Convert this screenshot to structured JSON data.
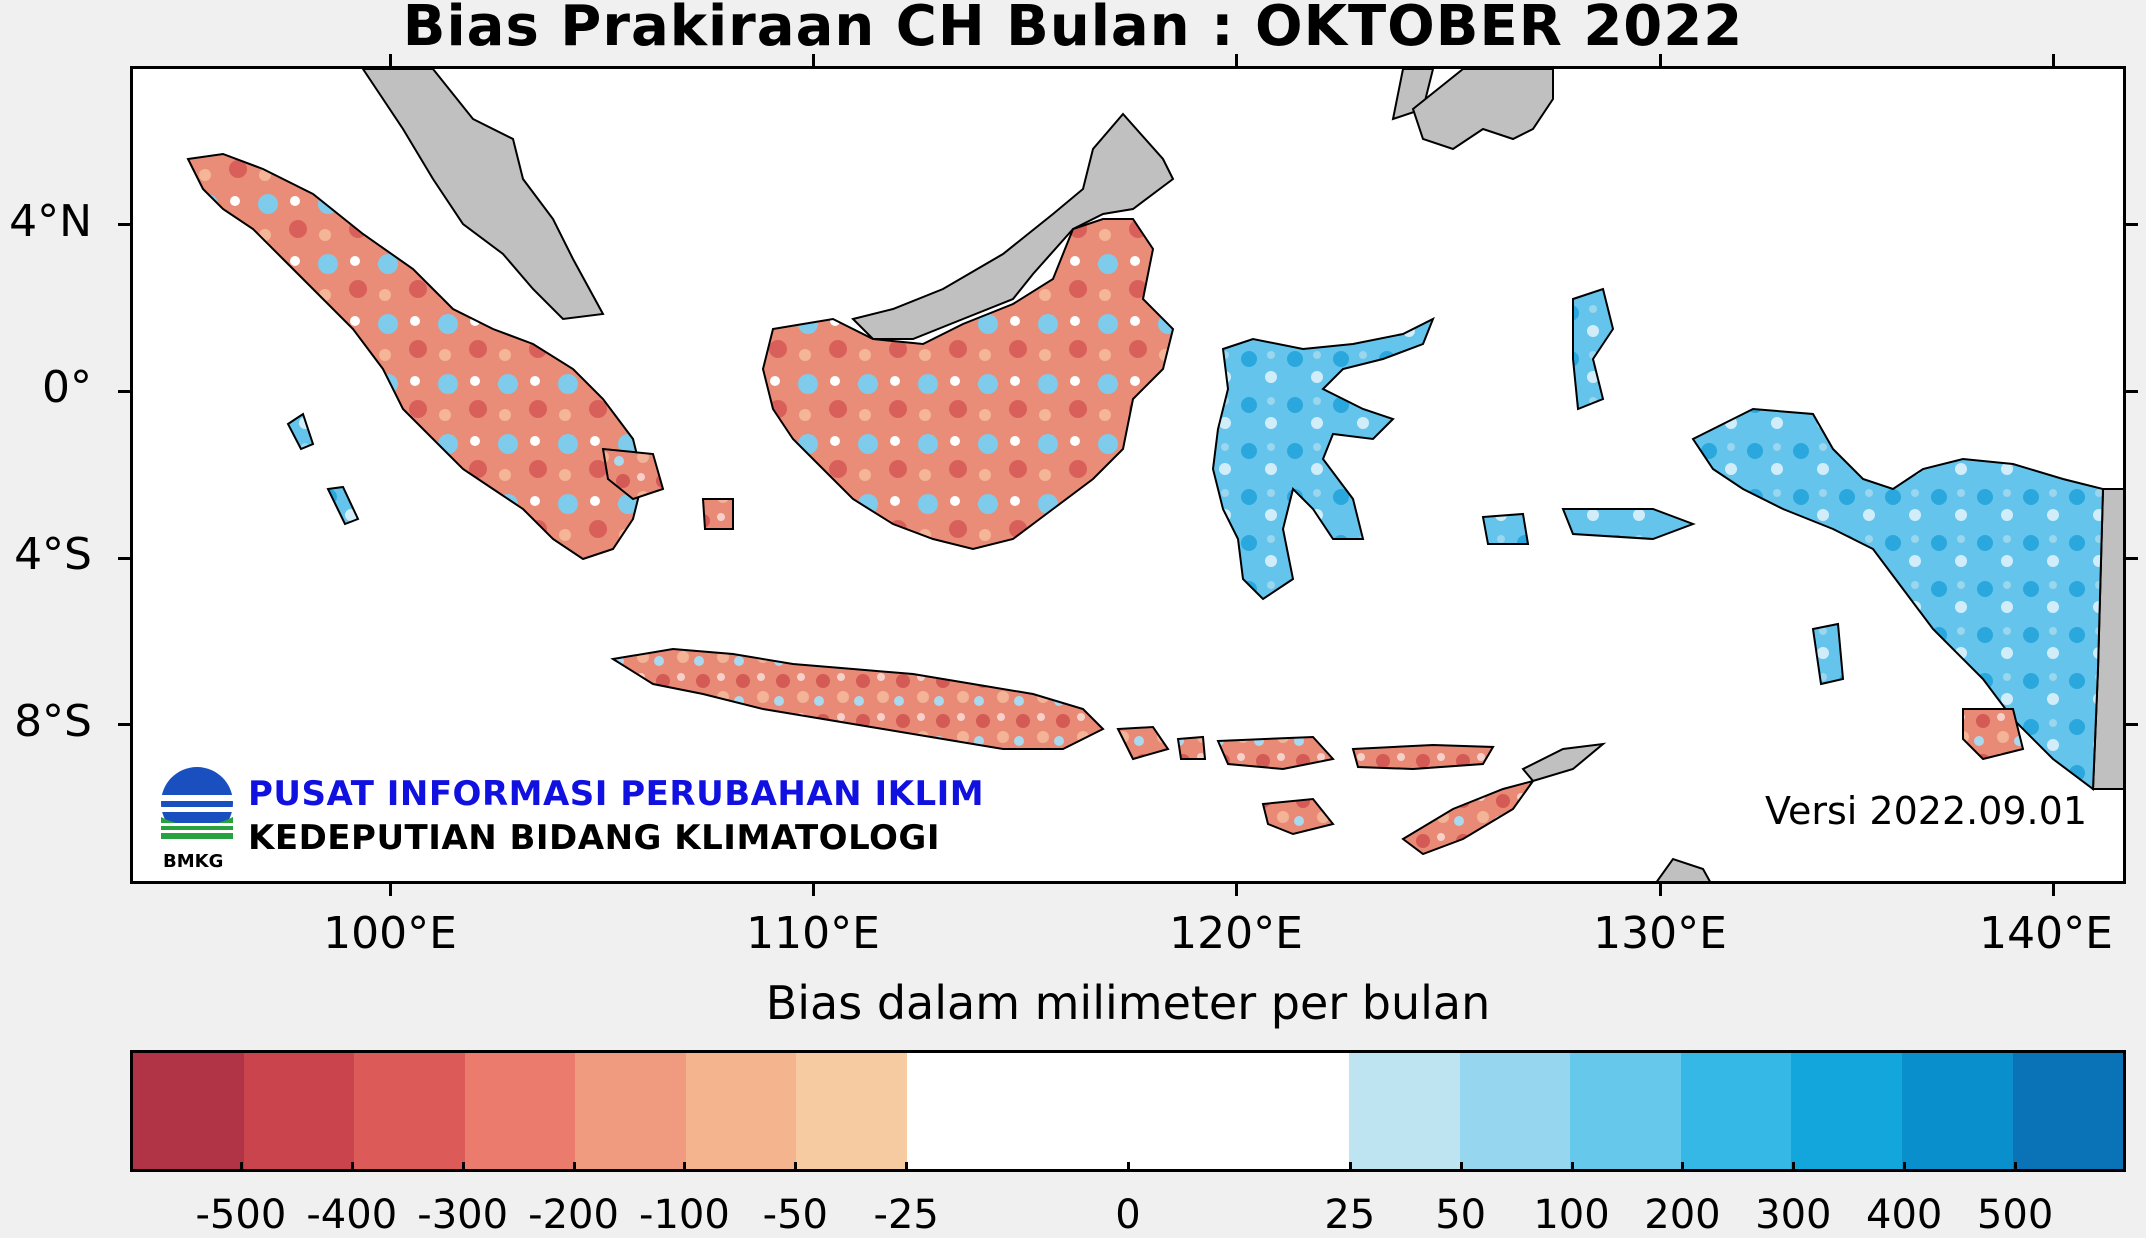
{
  "title": "Bias Prakiraan CH Bulan : OKTOBER 2022",
  "lat_labels": [
    "4°N",
    "0°",
    "4°S",
    "8°S"
  ],
  "lon_labels": [
    "100°E",
    "110°E",
    "120°E",
    "130°E",
    "140°E"
  ],
  "organization": {
    "logo_text": "BMKG",
    "name": "PUSAT INFORMASI PERUBAHAN IKLIM",
    "department": "KEDEPUTIAN BIDANG KLIMATOLOGI"
  },
  "version": "Versi 2022.09.01",
  "colorbar": {
    "label": "Bias dalam milimeter per bulan",
    "ticks": [
      "-500",
      "-400",
      "-300",
      "-200",
      "-100",
      "-50",
      "-25",
      "0",
      "25",
      "50",
      "100",
      "200",
      "300",
      "400",
      "500"
    ],
    "colors": [
      "#b03446",
      "#c9444d",
      "#dc5a57",
      "#ea7b6d",
      "#f09b80",
      "#f4b48e",
      "#f6cba1",
      "#ffffff",
      "#ffffff",
      "#ffffff",
      "#ffffff",
      "#bde4f0",
      "#97d6ef",
      "#66c8eb",
      "#36b8e6",
      "#12a6dc",
      "#0a8fcd",
      "#0a72b6"
    ],
    "widths": [
      1,
      1,
      1,
      1,
      1,
      1,
      1,
      1,
      1,
      1,
      1,
      1,
      1,
      1,
      1,
      1,
      1,
      1
    ]
  },
  "colors": {
    "land_outside": "#c0c0c0",
    "wet": "#5bc1ec",
    "dry": "#e4806f",
    "ocean": "#ffffff"
  }
}
